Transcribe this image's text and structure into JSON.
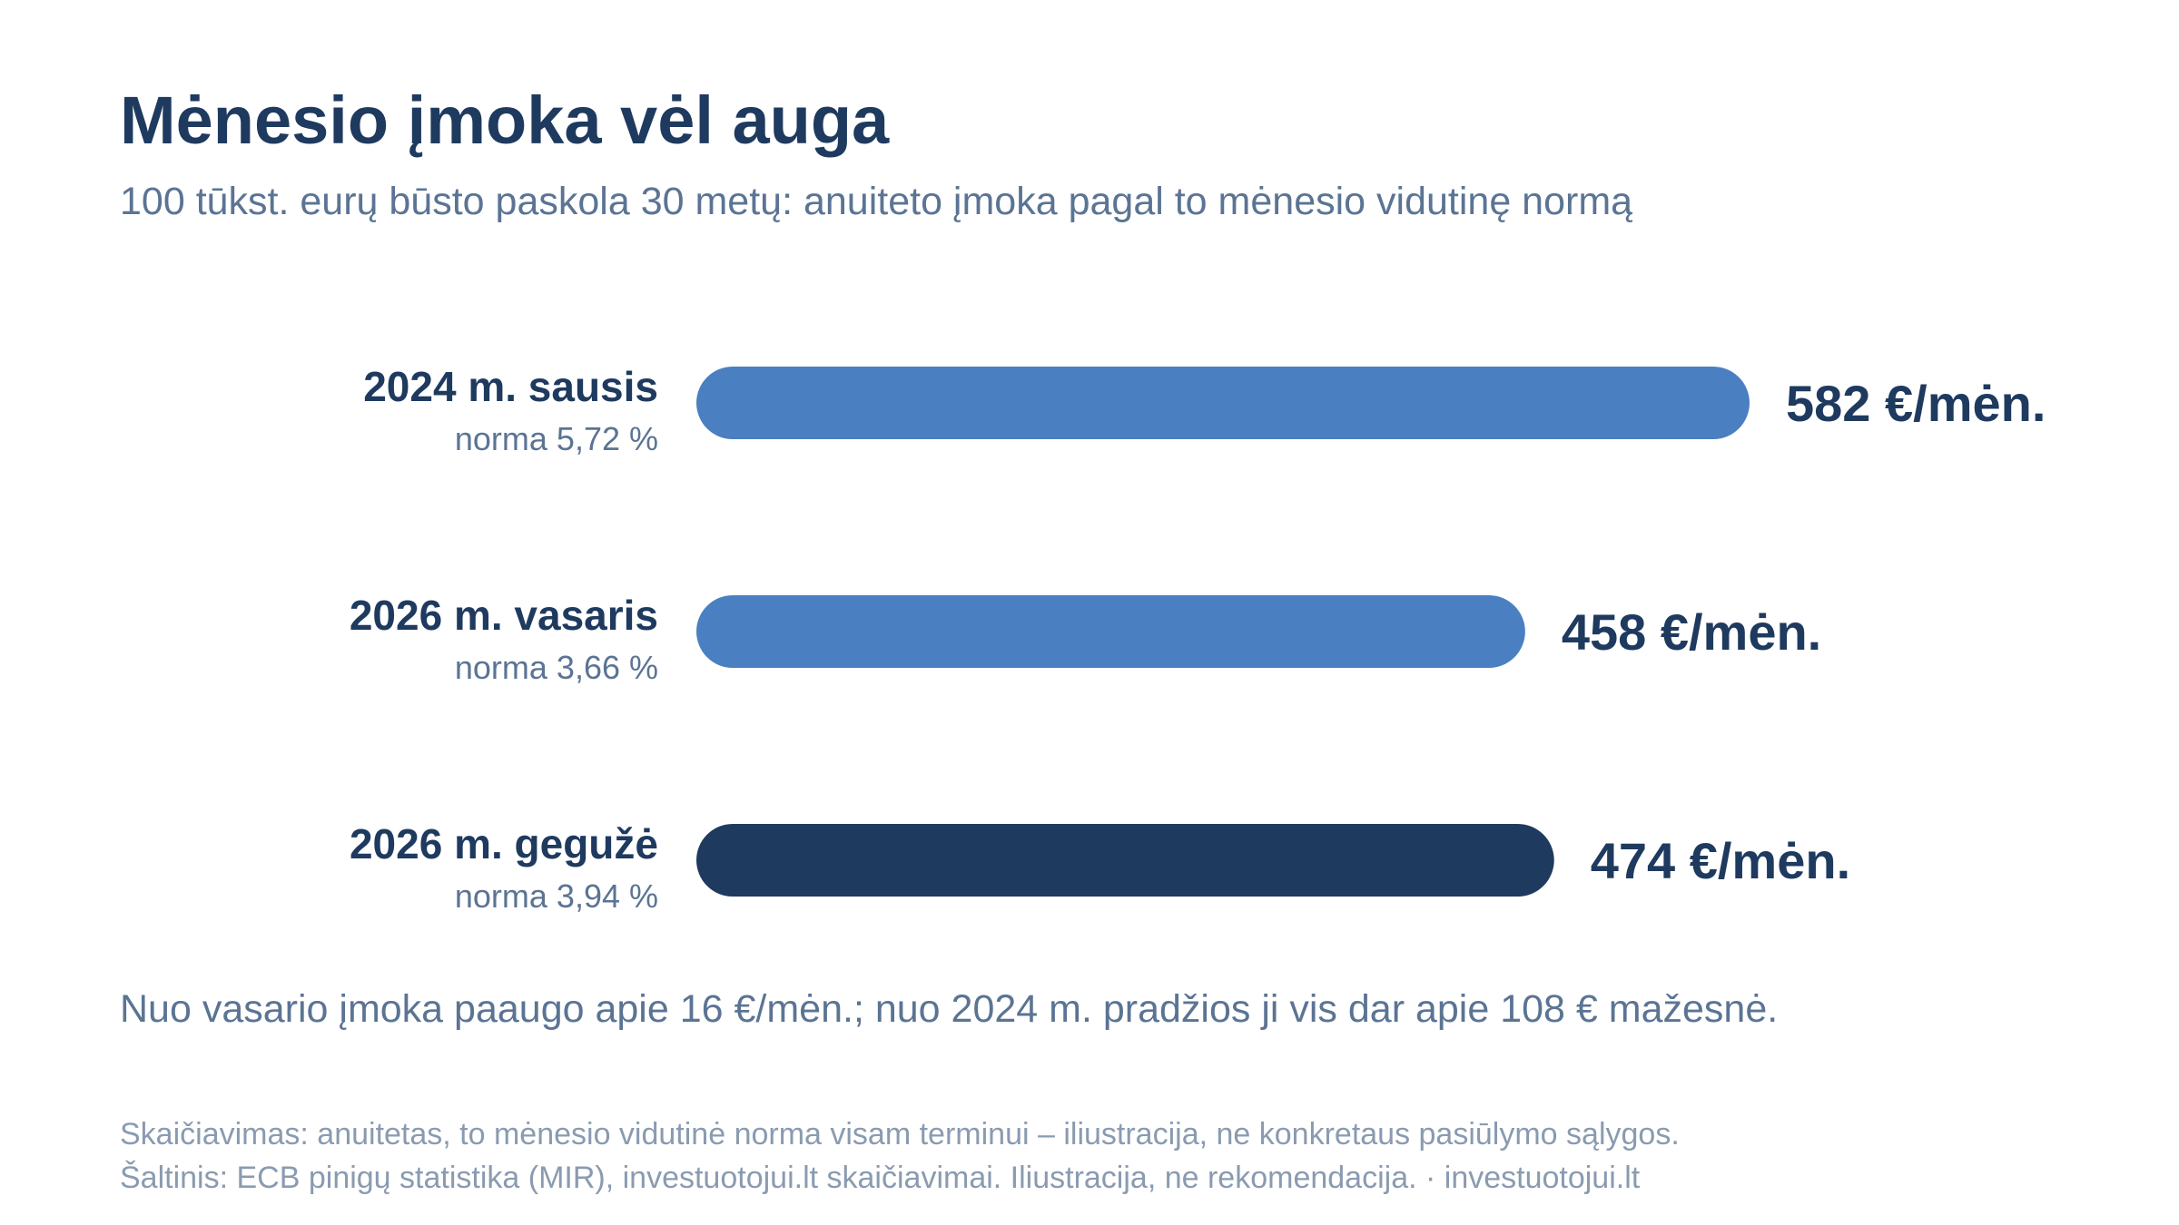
{
  "title": "Mėnesio įmoka vėl auga",
  "subtitle": "100 tūkst. eurų būsto paskola 30 metų: anuiteto įmoka pagal to mėnesio vidutinę normą",
  "note": "Nuo vasario įmoka paaugo apie 16 €/mėn.; nuo 2024 m. pradžios ji vis dar apie 108 € mažesnė.",
  "footer": {
    "line1": "Skaičiavimas: anuitetas, to mėnesio vidutinė norma visam terminui – iliustracija, ne konkretaus pasiūlymo sąlygos.",
    "line2": "Šaltinis: ECB pinigų statistika (MIR), investuotojui.lt skaičiavimai. Iliustracija, ne rekomendacija. · investuotojui.lt"
  },
  "colors": {
    "bar_default": "#4a7fc1",
    "bar_highlight": "#1f3a5f",
    "text_dark": "#1f3a5f",
    "text_muted": "#5b7494"
  },
  "chart_data": {
    "type": "bar",
    "orientation": "horizontal",
    "categories": [
      "2024 m. sausis",
      "2026 m. vasaris",
      "2026 m. gegužė"
    ],
    "sublabels": [
      "norma 5,72 %",
      "norma 3,66 %",
      "norma 3,94 %"
    ],
    "values": [
      582,
      458,
      474
    ],
    "value_labels": [
      "582 €/mėn.",
      "458 €/mėn.",
      "474 €/mėn."
    ],
    "highlight": [
      false,
      false,
      true
    ],
    "xlim": [
      0,
      582
    ],
    "grid": false,
    "legend": "none"
  }
}
